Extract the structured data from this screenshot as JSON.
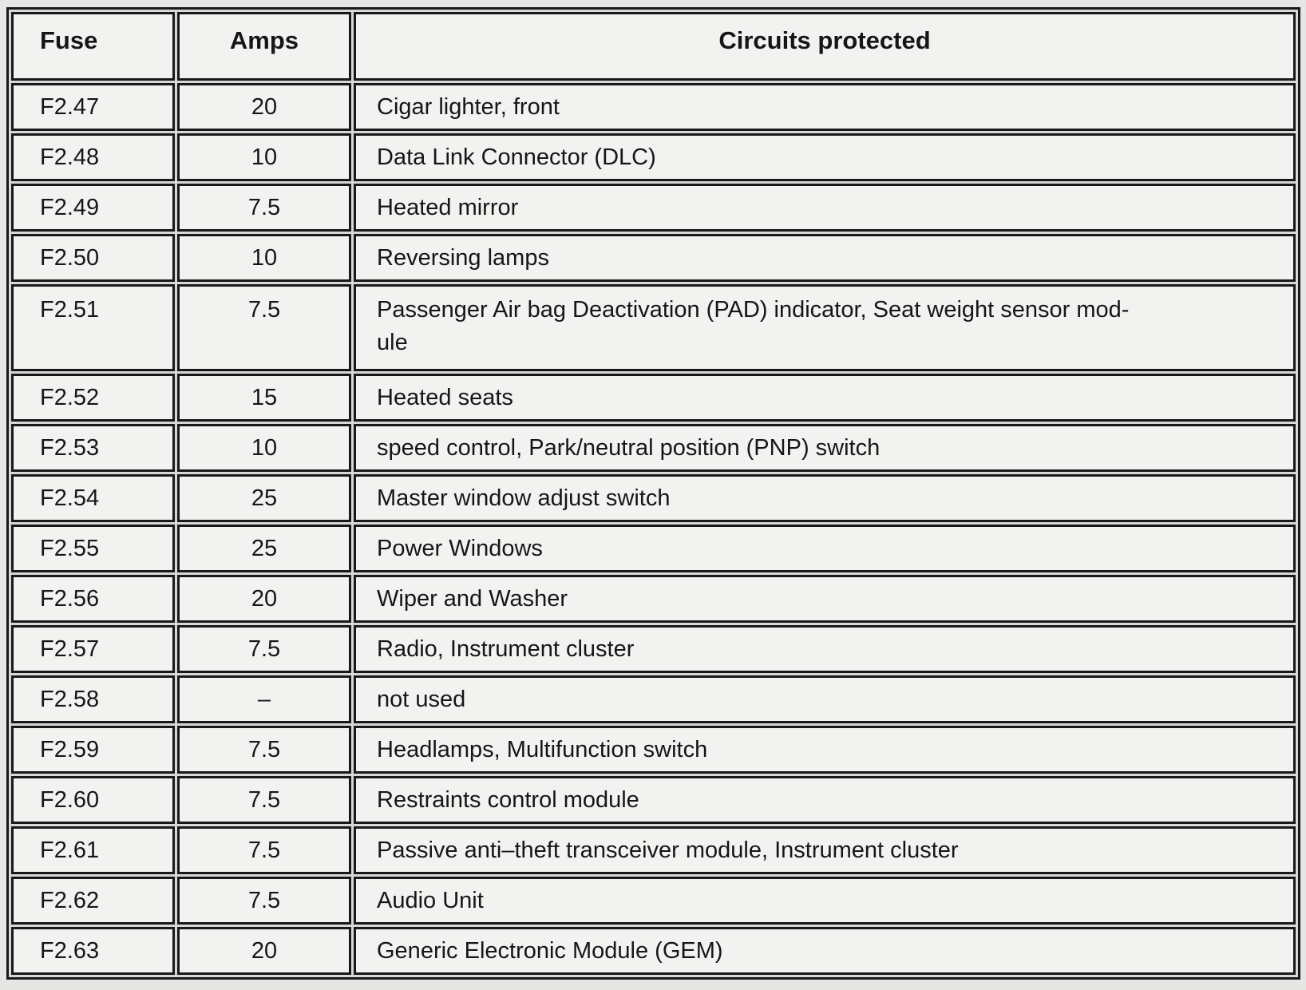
{
  "table": {
    "headers": [
      "Fuse",
      "Amps",
      "Circuits protected"
    ],
    "rows": [
      {
        "fuse": "F2.47",
        "amps": "20",
        "circuits": "Cigar lighter, front"
      },
      {
        "fuse": "F2.48",
        "amps": "10",
        "circuits": "Data Link Connector (DLC)"
      },
      {
        "fuse": "F2.49",
        "amps": "7.5",
        "circuits": "Heated mirror"
      },
      {
        "fuse": "F2.50",
        "amps": "10",
        "circuits": "Reversing lamps"
      },
      {
        "fuse": "F2.51",
        "amps": "7.5",
        "circuits": "Passenger Air bag Deactivation (PAD) indicator, Seat weight sensor mod-\nule"
      },
      {
        "fuse": "F2.52",
        "amps": "15",
        "circuits": "Heated seats"
      },
      {
        "fuse": "F2.53",
        "amps": "10",
        "circuits": "speed control, Park/neutral position (PNP) switch"
      },
      {
        "fuse": "F2.54",
        "amps": "25",
        "circuits": "Master window adjust switch"
      },
      {
        "fuse": "F2.55",
        "amps": "25",
        "circuits": "Power Windows"
      },
      {
        "fuse": "F2.56",
        "amps": "20",
        "circuits": "Wiper and Washer"
      },
      {
        "fuse": "F2.57",
        "amps": "7.5",
        "circuits": "Radio, Instrument cluster"
      },
      {
        "fuse": "F2.58",
        "amps": "–",
        "circuits": "not used"
      },
      {
        "fuse": "F2.59",
        "amps": "7.5",
        "circuits": "Headlamps, Multifunction switch"
      },
      {
        "fuse": "F2.60",
        "amps": "7.5",
        "circuits": "Restraints control module"
      },
      {
        "fuse": "F2.61",
        "amps": "7.5",
        "circuits": "Passive anti–theft transceiver module, Instrument cluster"
      },
      {
        "fuse": "F2.62",
        "amps": "7.5",
        "circuits": "Audio Unit"
      },
      {
        "fuse": "F2.63",
        "amps": "20",
        "circuits": "Generic Electronic Module (GEM)"
      }
    ],
    "colors": {
      "paper": "#f2f2f0",
      "margin": "#e6e6e4",
      "border": "#191919",
      "text": "#161616"
    }
  }
}
